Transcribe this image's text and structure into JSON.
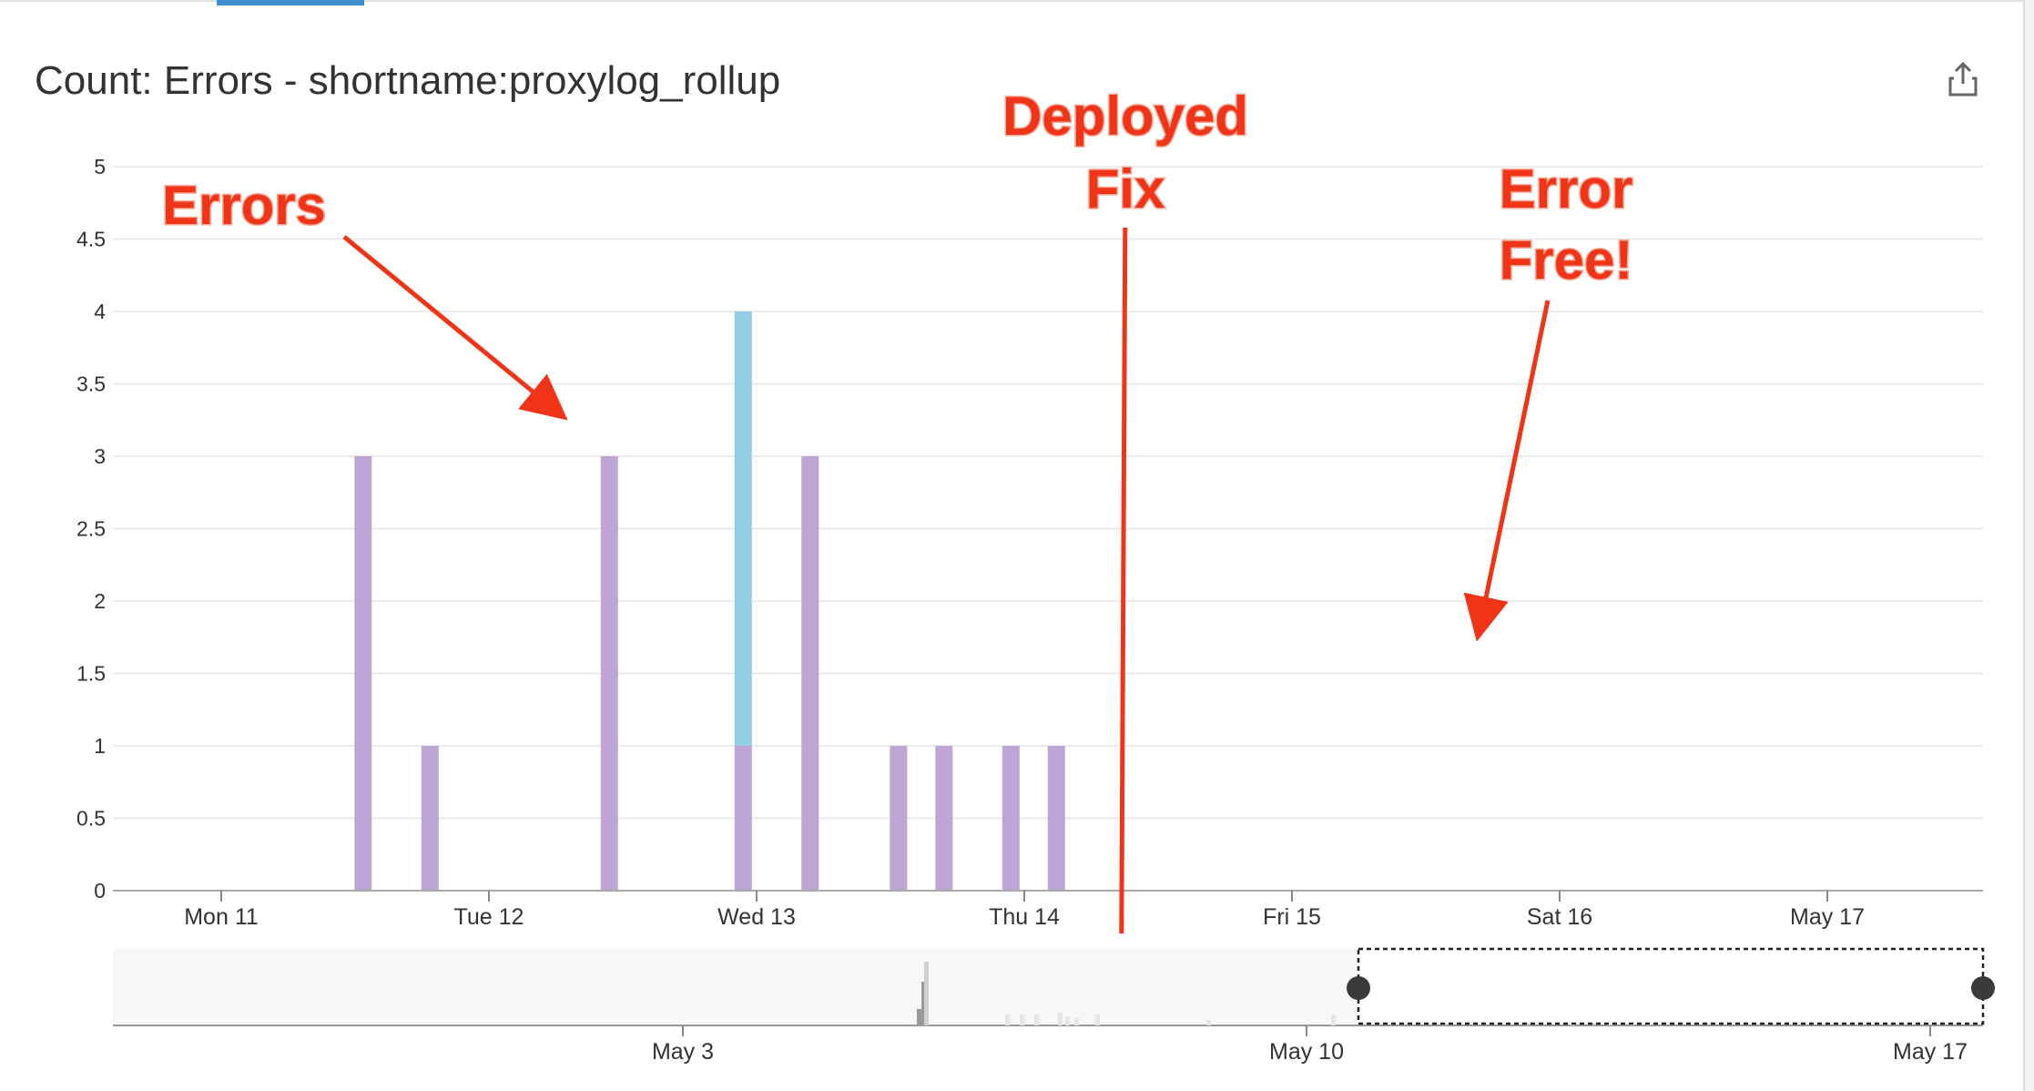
{
  "header": {
    "title": "Count: Errors - shortname:proxylog_rollup"
  },
  "icons": {
    "export": "share-export-icon"
  },
  "colors": {
    "series_purple": "#bfa5d6",
    "series_blue": "#93cce6",
    "annotation": "#ef3417",
    "grid": "#e5e5e5",
    "accent_tab": "#3c8fd0"
  },
  "chart_data": [
    {
      "type": "bar",
      "stacked": true,
      "title": "Count: Errors - shortname:proxylog_rollup",
      "ylim": [
        0,
        5
      ],
      "yticks": [
        "0",
        "0.5",
        "1",
        "1.5",
        "2",
        "2.5",
        "3",
        "3.5",
        "4",
        "4.5",
        "5"
      ],
      "x_axis": {
        "type": "time",
        "range_days": [
          11,
          17.6
        ],
        "labels": [
          {
            "label": "Mon 11",
            "day": 11
          },
          {
            "label": "Tue 12",
            "day": 12
          },
          {
            "label": "Wed 13",
            "day": 13
          },
          {
            "label": "Thu 14",
            "day": 14
          },
          {
            "label": "Fri 15",
            "day": 15
          },
          {
            "label": "Sat 16",
            "day": 16
          },
          {
            "label": "May 17",
            "day": 17
          }
        ]
      },
      "grid": true,
      "series": [
        {
          "color": "#bfa5d6",
          "points": [
            {
              "day": 11.53,
              "value": 3
            },
            {
              "day": 11.78,
              "value": 1
            },
            {
              "day": 12.45,
              "value": 3
            },
            {
              "day": 12.95,
              "value": 1
            },
            {
              "day": 13.2,
              "value": 3
            },
            {
              "day": 13.53,
              "value": 1
            },
            {
              "day": 13.7,
              "value": 1
            },
            {
              "day": 13.95,
              "value": 1
            },
            {
              "day": 14.12,
              "value": 1
            }
          ]
        },
        {
          "color": "#93cce6",
          "points": [
            {
              "day": 12.95,
              "value": 3
            }
          ]
        }
      ],
      "annotations": [
        {
          "text": "Errors"
        },
        {
          "text": "Deployed",
          "day": 14.37
        },
        {
          "text": "Fix"
        },
        {
          "text": "Error"
        },
        {
          "text": "Free!"
        }
      ]
    },
    {
      "type": "bar",
      "role": "overview-navigator",
      "x_axis": {
        "labels": [
          {
            "label": "May 3"
          },
          {
            "label": "May 10"
          },
          {
            "label": "May 17"
          }
        ]
      },
      "selected_range_days": [
        11,
        17.6
      ]
    }
  ]
}
